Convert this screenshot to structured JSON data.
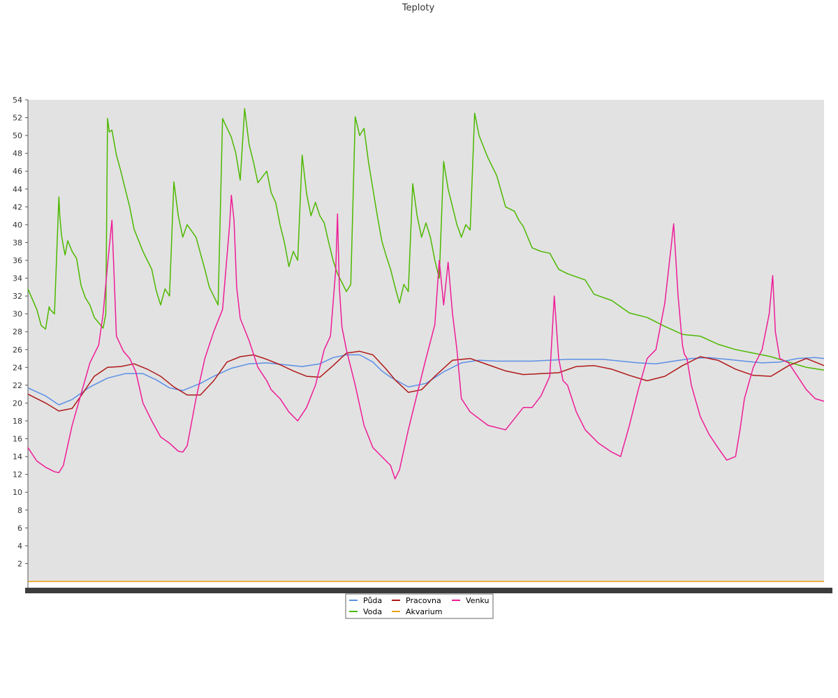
{
  "chart_data": {
    "type": "line",
    "title": "Teploty",
    "xlabel": "",
    "ylabel": "",
    "ylim": [
      0,
      54
    ],
    "yticks": [
      2,
      4,
      6,
      8,
      10,
      12,
      14,
      16,
      18,
      20,
      22,
      24,
      26,
      28,
      30,
      32,
      34,
      36,
      38,
      40,
      42,
      44,
      46,
      48,
      50,
      52,
      54
    ],
    "xlim": [
      0,
      9
    ],
    "grid": false,
    "legend": "bottom-center",
    "series": [
      {
        "name": "Půda",
        "color": "#5b8fe6",
        "x": [
          0,
          0.2,
          0.35,
          0.5,
          0.7,
          0.9,
          1.1,
          1.3,
          1.45,
          1.6,
          1.75,
          1.85,
          1.95,
          2.1,
          2.3,
          2.5,
          2.7,
          2.9,
          3.1,
          3.3,
          3.45,
          3.6,
          3.75,
          3.9,
          4.0,
          4.1,
          4.3,
          4.5,
          4.7,
          4.9,
          5.1,
          5.3,
          5.5,
          5.7,
          5.9,
          6.1,
          6.3,
          6.5,
          6.7,
          6.9,
          7.1,
          7.3,
          7.5,
          7.7,
          7.9,
          8.1,
          8.3,
          8.5,
          8.7,
          8.9,
          9.0
        ],
        "y": [
          21.7,
          20.8,
          19.8,
          20.4,
          21.8,
          22.8,
          23.3,
          23.3,
          22.6,
          21.7,
          21.4,
          21.8,
          22.2,
          23.0,
          23.9,
          24.4,
          24.5,
          24.3,
          24.1,
          24.4,
          25.1,
          25.4,
          25.4,
          24.6,
          23.6,
          22.9,
          21.8,
          22.2,
          23.5,
          24.5,
          24.8,
          24.7,
          24.7,
          24.7,
          24.8,
          24.9,
          24.9,
          24.9,
          24.7,
          24.5,
          24.4,
          24.7,
          25.0,
          25.1,
          24.9,
          24.7,
          24.5,
          24.6,
          25.0,
          25.1,
          25.0
        ]
      },
      {
        "name": "Voda",
        "color": "#4db800",
        "x": [
          0,
          0.1,
          0.15,
          0.2,
          0.24,
          0.25,
          0.3,
          0.35,
          0.36,
          0.38,
          0.4,
          0.42,
          0.45,
          0.5,
          0.55,
          0.6,
          0.65,
          0.7,
          0.75,
          0.8,
          0.85,
          0.88,
          0.9,
          0.92,
          0.95,
          1.0,
          1.05,
          1.1,
          1.15,
          1.2,
          1.3,
          1.35,
          1.4,
          1.45,
          1.5,
          1.55,
          1.6,
          1.65,
          1.7,
          1.75,
          1.8,
          1.9,
          2.0,
          2.05,
          2.1,
          2.15,
          2.2,
          2.3,
          2.35,
          2.4,
          2.45,
          2.5,
          2.55,
          2.6,
          2.7,
          2.75,
          2.8,
          2.85,
          2.9,
          2.95,
          3.0,
          3.05,
          3.1,
          3.15,
          3.2,
          3.25,
          3.3,
          3.35,
          3.4,
          3.45,
          3.5,
          3.55,
          3.6,
          3.65,
          3.7,
          3.75,
          3.8,
          3.85,
          3.9,
          3.95,
          4.0,
          4.05,
          4.1,
          4.15,
          4.2,
          4.25,
          4.3,
          4.35,
          4.4,
          4.45,
          4.5,
          4.55,
          4.6,
          4.65,
          4.7,
          4.75,
          4.8,
          4.85,
          4.9,
          4.95,
          5.0,
          5.05,
          5.1,
          5.2,
          5.3,
          5.4,
          5.5,
          5.55,
          5.6,
          5.7,
          5.8,
          5.9,
          6.0,
          6.1,
          6.3,
          6.4,
          6.6,
          6.8,
          7.0,
          7.2,
          7.4,
          7.6,
          7.8,
          8.0,
          8.2,
          8.4,
          8.6,
          8.8,
          9.0
        ],
        "y": [
          32.8,
          30.5,
          28.7,
          28.3,
          30.8,
          30.5,
          30.0,
          43.1,
          41.0,
          38.8,
          37.6,
          36.6,
          38.2,
          37.0,
          36.2,
          33.2,
          31.8,
          31.0,
          29.6,
          29.0,
          28.4,
          30.0,
          51.9,
          50.4,
          50.6,
          47.8,
          46.0,
          44.0,
          42.0,
          39.5,
          37.0,
          36.0,
          35.0,
          32.6,
          31.0,
          32.8,
          32.0,
          44.8,
          41.0,
          38.6,
          40.0,
          38.6,
          35.0,
          33.0,
          32.0,
          31.0,
          51.9,
          49.8,
          48.0,
          45.0,
          53.0,
          49.0,
          47.0,
          44.7,
          46.0,
          43.6,
          42.5,
          40.0,
          38.0,
          35.3,
          37.0,
          36.0,
          47.8,
          43.5,
          41.0,
          42.5,
          41.0,
          40.2,
          38.0,
          36.0,
          34.5,
          33.5,
          32.5,
          33.3,
          52.1,
          50.0,
          50.8,
          47.0,
          44.0,
          41.0,
          38.2,
          36.5,
          35.0,
          33.0,
          31.2,
          33.3,
          32.5,
          44.6,
          41.0,
          38.6,
          40.2,
          38.6,
          36.0,
          34.0,
          47.1,
          44.0,
          42.0,
          40.0,
          38.6,
          40.0,
          39.4,
          52.5,
          50.0,
          47.5,
          45.5,
          42.0,
          41.5,
          40.5,
          39.8,
          37.4,
          37.0,
          36.8,
          35.0,
          34.5,
          33.8,
          32.2,
          31.5,
          30.1,
          29.6,
          28.6,
          27.7,
          27.5,
          26.6,
          26.0,
          25.6,
          25.2,
          24.6,
          24.0,
          23.7
        ]
      },
      {
        "name": "Pracovna",
        "color": "#b01818",
        "x": [
          0,
          0.2,
          0.35,
          0.5,
          0.6,
          0.75,
          0.9,
          1.05,
          1.2,
          1.35,
          1.5,
          1.65,
          1.8,
          1.95,
          2.1,
          2.25,
          2.4,
          2.55,
          2.7,
          2.85,
          3.0,
          3.15,
          3.3,
          3.45,
          3.6,
          3.75,
          3.9,
          4.05,
          4.15,
          4.3,
          4.45,
          4.6,
          4.8,
          5.0,
          5.2,
          5.4,
          5.6,
          5.8,
          6.0,
          6.2,
          6.4,
          6.6,
          6.8,
          7.0,
          7.2,
          7.4,
          7.6,
          7.8,
          8.0,
          8.2,
          8.4,
          8.6,
          8.8,
          9.0
        ],
        "y": [
          21.0,
          20.0,
          19.1,
          19.4,
          20.8,
          23.0,
          24.0,
          24.1,
          24.4,
          23.8,
          23.0,
          21.8,
          20.9,
          20.9,
          22.5,
          24.6,
          25.2,
          25.4,
          24.9,
          24.3,
          23.6,
          23.0,
          22.9,
          24.2,
          25.6,
          25.8,
          25.4,
          23.8,
          22.6,
          21.2,
          21.5,
          23.0,
          24.8,
          25.0,
          24.3,
          23.6,
          23.2,
          23.3,
          23.4,
          24.1,
          24.2,
          23.8,
          23.1,
          22.5,
          23.0,
          24.2,
          25.2,
          24.8,
          23.8,
          23.1,
          23.0,
          24.2,
          25.0,
          24.2
        ]
      },
      {
        "name": "Akvarium",
        "color": "#e8a21a",
        "x": [
          0,
          9.0
        ],
        "y": [
          0,
          0
        ]
      },
      {
        "name": "Venku",
        "color": "#ee1c97",
        "x": [
          0,
          0.1,
          0.2,
          0.3,
          0.35,
          0.4,
          0.5,
          0.6,
          0.7,
          0.8,
          0.85,
          0.9,
          0.95,
          1.0,
          1.08,
          1.15,
          1.22,
          1.3,
          1.4,
          1.5,
          1.6,
          1.7,
          1.75,
          1.8,
          1.9,
          2.0,
          2.1,
          2.2,
          2.28,
          2.3,
          2.33,
          2.36,
          2.4,
          2.5,
          2.6,
          2.7,
          2.75,
          2.85,
          2.95,
          3.05,
          3.15,
          3.25,
          3.35,
          3.42,
          3.48,
          3.5,
          3.52,
          3.55,
          3.6,
          3.7,
          3.8,
          3.9,
          4.0,
          4.1,
          4.15,
          4.2,
          4.3,
          4.4,
          4.5,
          4.6,
          4.65,
          4.7,
          4.75,
          4.8,
          4.85,
          4.9,
          5.0,
          5.2,
          5.4,
          5.6,
          5.7,
          5.8,
          5.9,
          5.95,
          6.0,
          6.05,
          6.1,
          6.15,
          6.2,
          6.3,
          6.45,
          6.6,
          6.7,
          6.8,
          6.9,
          7.0,
          7.1,
          7.2,
          7.3,
          7.35,
          7.4,
          7.42,
          7.45,
          7.5,
          7.6,
          7.7,
          7.8,
          7.9,
          8.0,
          8.05,
          8.1,
          8.2,
          8.3,
          8.38,
          8.42,
          8.45,
          8.5,
          8.6,
          8.7,
          8.8,
          8.9,
          9.0
        ],
        "y": [
          15.0,
          13.5,
          12.8,
          12.3,
          12.2,
          13.0,
          17.5,
          21.0,
          24.5,
          26.5,
          30.0,
          35.5,
          40.5,
          27.5,
          25.8,
          25.0,
          23.5,
          20.0,
          18.0,
          16.2,
          15.5,
          14.6,
          14.5,
          15.2,
          20.5,
          25.0,
          28.0,
          30.5,
          40.0,
          43.3,
          40.5,
          33.0,
          29.5,
          27.0,
          24.0,
          22.5,
          21.5,
          20.5,
          19.0,
          18.0,
          19.5,
          22.0,
          26.0,
          27.5,
          35.0,
          41.2,
          33.0,
          28.5,
          26.0,
          22.0,
          17.5,
          15.0,
          14.0,
          13.0,
          11.5,
          12.5,
          17.0,
          21.0,
          25.0,
          28.8,
          36.0,
          31.0,
          35.8,
          30.0,
          26.0,
          20.5,
          19.0,
          17.5,
          17.0,
          19.5,
          19.5,
          20.8,
          23.0,
          32.0,
          25.0,
          22.5,
          22.0,
          20.5,
          19.0,
          17.0,
          15.5,
          14.5,
          14.0,
          17.5,
          21.5,
          25.0,
          26.0,
          31.2,
          40.1,
          32.0,
          26.5,
          25.5,
          25.0,
          22.0,
          18.5,
          16.5,
          15.0,
          13.6,
          14.0,
          17.0,
          20.5,
          24.0,
          26.0,
          30.0,
          34.3,
          28.0,
          25.0,
          24.5,
          23.0,
          21.5,
          20.5,
          20.2
        ]
      }
    ]
  }
}
